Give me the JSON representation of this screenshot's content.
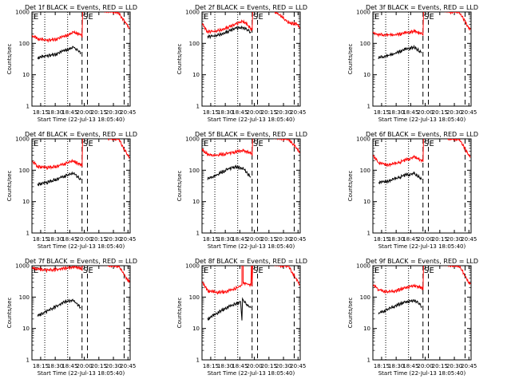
{
  "figure": {
    "x_axis_label": "Start Time (22-Jul-13 18:05:40)",
    "y_axis_label": "Counts/sec",
    "flag_labels": [
      "E",
      "S",
      "E"
    ]
  },
  "chart_data": [
    {
      "type": "line",
      "title": "Det 1f BLACK = Events, RED = LLD",
      "xlabel": "Start Time (22-Jul-13 18:05:40)",
      "ylabel": "Counts/sec",
      "y_scale": "log",
      "ylim": [
        1,
        1000
      ],
      "xlim": [
        "18:05:40",
        "20:49"
      ],
      "x_ticks": [
        "18:15",
        "18:30",
        "18:45",
        "20:00",
        "20:15",
        "20:30",
        "20:45"
      ],
      "y_ticks": [
        "1",
        "10",
        "100",
        "1000"
      ],
      "grid": false,
      "legend": "none",
      "series": [
        {
          "name": "RED",
          "color": "#ff0000",
          "x": [
            "18:06",
            "18:15",
            "18:30",
            "18:45",
            "19:00",
            "19:15",
            "19:28",
            "19:29",
            "19:30",
            "19:45",
            "20:00",
            "20:15",
            "20:30",
            "20:45",
            "20:48"
          ],
          "y": [
            180,
            140,
            125,
            135,
            170,
            225,
            190,
            165,
            1300,
            1250,
            1200,
            1000,
            950,
            350,
            300
          ]
        },
        {
          "name": "BLACK",
          "color": "#000000",
          "x": [
            "18:15",
            "18:30",
            "18:45",
            "19:00",
            "19:15",
            "19:27"
          ],
          "y": [
            35,
            40,
            45,
            60,
            75,
            50
          ]
        }
      ],
      "dotted_lines_x": [
        "18:27",
        "19:05"
      ],
      "dashed_lines_x": [
        "19:29",
        "19:38",
        "20:39"
      ]
    },
    {
      "type": "line",
      "title": "Det 2f BLACK = Events, RED = LLD",
      "xlabel": "Start Time (22-Jul-13 18:05:40)",
      "ylabel": "Counts/sec",
      "y_scale": "log",
      "ylim": [
        1,
        1000
      ],
      "xlim": [
        "18:05:40",
        "20:49"
      ],
      "x_ticks": [
        "18:15",
        "18:30",
        "18:45",
        "20:00",
        "20:15",
        "20:30",
        "20:45"
      ],
      "y_ticks": [
        "1",
        "10",
        "100",
        "1000"
      ],
      "grid": false,
      "legend": "none",
      "series": [
        {
          "name": "RED",
          "color": "#ff0000",
          "x": [
            "18:06",
            "18:15",
            "18:30",
            "18:45",
            "19:00",
            "19:15",
            "19:28",
            "19:29",
            "19:30",
            "19:45",
            "20:00",
            "20:15",
            "20:30",
            "20:45",
            "20:48"
          ],
          "y": [
            420,
            230,
            250,
            300,
            400,
            520,
            280,
            260,
            1300,
            1250,
            1200,
            800,
            450,
            400,
            300
          ]
        },
        {
          "name": "BLACK",
          "color": "#000000",
          "x": [
            "18:15",
            "18:30",
            "18:45",
            "19:00",
            "19:15",
            "19:27"
          ],
          "y": [
            160,
            180,
            220,
            300,
            320,
            220
          ]
        }
      ],
      "dotted_lines_x": [
        "18:27",
        "19:05"
      ],
      "dashed_lines_x": [
        "19:29",
        "19:38",
        "20:39"
      ]
    },
    {
      "type": "line",
      "title": "Det 3f BLACK = Events, RED = LLD",
      "xlabel": "Start Time (22-Jul-13 18:05:40)",
      "ylabel": "Counts/sec",
      "y_scale": "log",
      "ylim": [
        1,
        1000
      ],
      "xlim": [
        "18:05:40",
        "20:49"
      ],
      "x_ticks": [
        "18:15",
        "18:30",
        "18:45",
        "20:00",
        "20:15",
        "20:30",
        "20:45"
      ],
      "y_ticks": [
        "1",
        "10",
        "100",
        "1000"
      ],
      "grid": false,
      "legend": "none",
      "series": [
        {
          "name": "RED",
          "color": "#ff0000",
          "x": [
            "18:06",
            "18:15",
            "18:30",
            "18:45",
            "19:00",
            "19:15",
            "19:28",
            "19:29",
            "19:30",
            "19:45",
            "20:00",
            "20:15",
            "20:30",
            "20:45",
            "20:48"
          ],
          "y": [
            220,
            190,
            185,
            190,
            215,
            240,
            210,
            190,
            1300,
            1250,
            1200,
            1000,
            950,
            320,
            280
          ]
        },
        {
          "name": "BLACK",
          "color": "#000000",
          "x": [
            "18:15",
            "18:30",
            "18:45",
            "19:00",
            "19:15",
            "19:27"
          ],
          "y": [
            35,
            40,
            50,
            65,
            75,
            50
          ]
        }
      ],
      "dotted_lines_x": [
        "18:27",
        "19:05"
      ],
      "dashed_lines_x": [
        "19:29",
        "19:38",
        "20:39"
      ]
    },
    {
      "type": "line",
      "title": "Det 4f BLACK = Events, RED = LLD",
      "xlabel": "Start Time (22-Jul-13 18:05:40)",
      "ylabel": "Counts/sec",
      "y_scale": "log",
      "ylim": [
        1,
        1000
      ],
      "xlim": [
        "18:05:40",
        "20:49"
      ],
      "x_ticks": [
        "18:15",
        "18:30",
        "18:45",
        "20:00",
        "20:15",
        "20:30",
        "20:45"
      ],
      "y_ticks": [
        "1",
        "10",
        "100",
        "1000"
      ],
      "grid": false,
      "legend": "none",
      "series": [
        {
          "name": "RED",
          "color": "#ff0000",
          "x": [
            "18:06",
            "18:15",
            "18:30",
            "18:45",
            "19:00",
            "19:15",
            "19:28",
            "19:29",
            "19:30",
            "19:45",
            "20:00",
            "20:15",
            "20:30",
            "20:45",
            "20:48"
          ],
          "y": [
            200,
            130,
            120,
            130,
            160,
            200,
            140,
            130,
            1300,
            1250,
            1200,
            1000,
            950,
            300,
            260
          ]
        },
        {
          "name": "BLACK",
          "color": "#000000",
          "x": [
            "18:15",
            "18:30",
            "18:45",
            "19:00",
            "19:15",
            "19:27"
          ],
          "y": [
            35,
            40,
            50,
            65,
            80,
            50
          ]
        }
      ],
      "dotted_lines_x": [
        "18:27",
        "19:05"
      ],
      "dashed_lines_x": [
        "19:29",
        "19:38",
        "20:39"
      ]
    },
    {
      "type": "line",
      "title": "Det 5f BLACK = Events, RED = LLD",
      "xlabel": "Start Time (22-Jul-13 18:05:40)",
      "ylabel": "Counts/sec",
      "y_scale": "log",
      "ylim": [
        1,
        1000
      ],
      "xlim": [
        "18:05:40",
        "20:49"
      ],
      "x_ticks": [
        "18:15",
        "18:30",
        "18:45",
        "20:00",
        "20:15",
        "20:30",
        "20:45"
      ],
      "y_ticks": [
        "1",
        "10",
        "100",
        "1000"
      ],
      "grid": false,
      "legend": "none",
      "series": [
        {
          "name": "RED",
          "color": "#ff0000",
          "x": [
            "18:06",
            "18:15",
            "18:30",
            "18:45",
            "19:00",
            "19:15",
            "19:28",
            "19:29",
            "19:30",
            "19:45",
            "20:00",
            "20:15",
            "20:30",
            "20:45",
            "20:48"
          ],
          "y": [
            450,
            320,
            300,
            330,
            380,
            420,
            350,
            330,
            1300,
            1250,
            1200,
            1000,
            950,
            450,
            350
          ]
        },
        {
          "name": "BLACK",
          "color": "#000000",
          "x": [
            "18:15",
            "18:30",
            "18:45",
            "19:00",
            "19:15",
            "19:27"
          ],
          "y": [
            55,
            70,
            100,
            130,
            110,
            60
          ]
        }
      ],
      "dotted_lines_x": [
        "18:27",
        "19:05"
      ],
      "dashed_lines_x": [
        "19:29",
        "19:38",
        "20:39"
      ]
    },
    {
      "type": "line",
      "title": "Det 6f BLACK = Events, RED = LLD",
      "xlabel": "Start Time (22-Jul-13 18:05:40)",
      "ylabel": "Counts/sec",
      "y_scale": "log",
      "ylim": [
        1,
        1000
      ],
      "xlim": [
        "18:05:40",
        "20:49"
      ],
      "x_ticks": [
        "18:15",
        "18:30",
        "18:45",
        "20:00",
        "20:15",
        "20:30",
        "20:45"
      ],
      "y_ticks": [
        "1",
        "10",
        "100",
        "1000"
      ],
      "grid": false,
      "legend": "none",
      "series": [
        {
          "name": "RED",
          "color": "#ff0000",
          "x": [
            "18:06",
            "18:15",
            "18:30",
            "18:45",
            "19:00",
            "19:15",
            "19:28",
            "19:29",
            "19:30",
            "19:45",
            "20:00",
            "20:15",
            "20:30",
            "20:45",
            "20:48"
          ],
          "y": [
            300,
            170,
            150,
            165,
            210,
            270,
            200,
            180,
            1300,
            1250,
            1200,
            1000,
            950,
            300,
            260
          ]
        },
        {
          "name": "BLACK",
          "color": "#000000",
          "x": [
            "18:15",
            "18:30",
            "18:45",
            "19:00",
            "19:15",
            "19:27"
          ],
          "y": [
            40,
            45,
            55,
            70,
            80,
            50
          ]
        }
      ],
      "dotted_lines_x": [
        "18:27",
        "19:05"
      ],
      "dashed_lines_x": [
        "19:29",
        "19:38",
        "20:39"
      ]
    },
    {
      "type": "line",
      "title": "Det 7f BLACK = Events, RED = LLD",
      "xlabel": "Start Time (22-Jul-13 18:05:40)",
      "ylabel": "Counts/sec",
      "y_scale": "log",
      "ylim": [
        1,
        1000
      ],
      "xlim": [
        "18:05:40",
        "20:49"
      ],
      "x_ticks": [
        "18:15",
        "18:30",
        "18:45",
        "20:00",
        "20:15",
        "20:30",
        "20:45"
      ],
      "y_ticks": [
        "1",
        "10",
        "100",
        "1000"
      ],
      "grid": false,
      "legend": "none",
      "series": [
        {
          "name": "RED",
          "color": "#ff0000",
          "x": [
            "18:06",
            "18:15",
            "18:30",
            "18:45",
            "19:00",
            "19:15",
            "19:28",
            "19:29",
            "19:30",
            "19:45",
            "20:00",
            "20:15",
            "20:30",
            "20:45",
            "20:48"
          ],
          "y": [
            850,
            780,
            720,
            760,
            820,
            900,
            820,
            800,
            1300,
            1250,
            1200,
            1000,
            950,
            350,
            300
          ]
        },
        {
          "name": "BLACK",
          "color": "#000000",
          "x": [
            "18:15",
            "18:30",
            "18:45",
            "19:00",
            "19:15",
            "19:27"
          ],
          "y": [
            25,
            35,
            50,
            70,
            80,
            45
          ]
        }
      ],
      "dotted_lines_x": [
        "18:27",
        "19:05"
      ],
      "dashed_lines_x": [
        "19:29",
        "19:38",
        "20:39"
      ]
    },
    {
      "type": "line",
      "title": "Det 8f BLACK = Events, RED = LLD",
      "xlabel": "Start Time (22-Jul-13 18:05:40)",
      "ylabel": "Counts/sec",
      "y_scale": "log",
      "ylim": [
        1,
        1000
      ],
      "xlim": [
        "18:05:40",
        "20:49"
      ],
      "x_ticks": [
        "18:15",
        "18:30",
        "18:45",
        "20:00",
        "20:15",
        "20:30",
        "20:45"
      ],
      "y_ticks": [
        "1",
        "10",
        "100",
        "1000"
      ],
      "grid": false,
      "legend": "none",
      "series": [
        {
          "name": "RED",
          "color": "#ff0000",
          "x": [
            "18:06",
            "18:15",
            "18:30",
            "18:45",
            "19:00",
            "19:12",
            "19:12",
            "19:14",
            "19:14",
            "19:27",
            "19:28",
            "19:29",
            "19:30",
            "19:45",
            "20:00",
            "20:15",
            "20:30",
            "20:45",
            "20:48"
          ],
          "y": [
            300,
            160,
            140,
            150,
            185,
            240,
            1300,
            1300,
            280,
            250,
            1300,
            200,
            1300,
            1250,
            1200,
            1000,
            950,
            300,
            260
          ]
        },
        {
          "name": "BLACK",
          "color": "#000000",
          "x": [
            "18:15",
            "18:30",
            "18:45",
            "19:00",
            "19:10",
            "19:12",
            "19:13",
            "19:15",
            "19:27"
          ],
          "y": [
            20,
            30,
            45,
            60,
            70,
            20,
            80,
            75,
            45
          ]
        }
      ],
      "dotted_lines_x": [
        "18:27",
        "19:05"
      ],
      "dashed_lines_x": [
        "19:29",
        "19:38",
        "20:39"
      ]
    },
    {
      "type": "line",
      "title": "Det 9f BLACK = Events, RED = LLD",
      "xlabel": "Start Time (22-Jul-13 18:05:40)",
      "ylabel": "Counts/sec",
      "y_scale": "log",
      "ylim": [
        1,
        1000
      ],
      "xlim": [
        "18:05:40",
        "20:49"
      ],
      "x_ticks": [
        "18:15",
        "18:30",
        "18:45",
        "20:00",
        "20:15",
        "20:30",
        "20:45"
      ],
      "y_ticks": [
        "1",
        "10",
        "100",
        "1000"
      ],
      "grid": false,
      "legend": "none",
      "series": [
        {
          "name": "RED",
          "color": "#ff0000",
          "x": [
            "18:06",
            "18:15",
            "18:30",
            "18:45",
            "19:00",
            "19:15",
            "19:28",
            "19:29",
            "19:30",
            "19:45",
            "20:00",
            "20:15",
            "20:30",
            "20:45",
            "20:48"
          ],
          "y": [
            260,
            170,
            145,
            160,
            200,
            240,
            190,
            170,
            1300,
            1250,
            1200,
            1000,
            950,
            300,
            260
          ]
        },
        {
          "name": "BLACK",
          "color": "#000000",
          "x": [
            "18:15",
            "18:30",
            "18:45",
            "19:00",
            "19:15",
            "19:27"
          ],
          "y": [
            30,
            40,
            55,
            70,
            80,
            50
          ]
        }
      ],
      "dotted_lines_x": [
        "18:27",
        "19:05"
      ],
      "dashed_lines_x": [
        "19:29",
        "19:38",
        "20:39"
      ]
    }
  ]
}
